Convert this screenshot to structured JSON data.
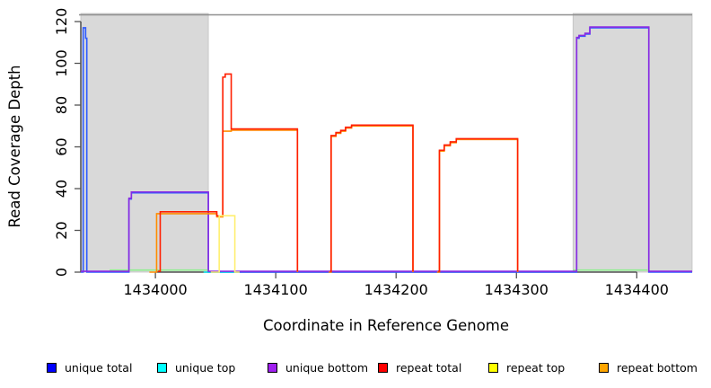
{
  "chart_data": {
    "type": "line",
    "title": "",
    "xlabel": "Coordinate in Reference Genome",
    "ylabel": "Read Coverage Depth",
    "xlim": [
      1433938,
      1434446
    ],
    "ylim": [
      0,
      120
    ],
    "x_ticks": [
      1434000,
      1434100,
      1434200,
      1434300,
      1434400
    ],
    "y_ticks": [
      0,
      20,
      40,
      60,
      80,
      100,
      120
    ],
    "grid": false,
    "legend_position": "bottom",
    "plot_top_border_color": "#8f8f8f",
    "axis_color": "#333333",
    "tick_color": "#555555",
    "background_regions": [
      {
        "name": "gray-repeat-region-left",
        "x0": 1433938,
        "x1": 1434044,
        "color": "#d9d9d9"
      },
      {
        "name": "gray-repeat-region-right",
        "x0": 1434347,
        "x1": 1434446,
        "color": "#d9d9d9"
      }
    ],
    "series": [
      {
        "name": "unique-total",
        "color": "#2e5bff",
        "dy": 0,
        "points": [
          [
            1433938,
            0
          ],
          [
            1433940,
            117
          ],
          [
            1433942,
            112
          ],
          [
            1433943,
            0
          ],
          [
            1433978,
            35
          ],
          [
            1433980,
            38
          ],
          [
            1434044,
            0
          ],
          [
            1434350,
            112
          ],
          [
            1434352,
            113
          ],
          [
            1434357,
            114
          ],
          [
            1434361,
            117
          ],
          [
            1434410,
            0
          ],
          [
            1434446,
            0
          ]
        ]
      },
      {
        "name": "green-baseline-left",
        "color": "#90ee90",
        "dy": 0,
        "points": [
          [
            1433962,
            1
          ],
          [
            1434044,
            1
          ]
        ]
      },
      {
        "name": "green-baseline-right",
        "color": "#90ee90",
        "dy": 0,
        "points": [
          [
            1434347,
            1
          ],
          [
            1434409,
            1
          ]
        ]
      },
      {
        "name": "unique-top",
        "color": "#00e5ee",
        "dy": 0,
        "points": [
          [
            1434040,
            0
          ],
          [
            1434070,
            0
          ]
        ]
      },
      {
        "name": "unique-bottom",
        "color": "#8a2be2",
        "dy": -0.9,
        "points": [
          [
            1433938,
            0
          ],
          [
            1433978,
            35
          ],
          [
            1433980,
            38
          ],
          [
            1434044,
            0
          ],
          [
            1434350,
            112
          ],
          [
            1434352,
            113
          ],
          [
            1434357,
            114
          ],
          [
            1434361,
            117
          ],
          [
            1434410,
            0
          ],
          [
            1434446,
            0
          ]
        ]
      },
      {
        "name": "repeat-bottom-block1",
        "color": "#ff8c00",
        "dy": 0,
        "points": [
          [
            1433995,
            0
          ],
          [
            1434001,
            28
          ],
          [
            1434051,
            26.5
          ],
          [
            1434056,
            67.5
          ],
          [
            1434063,
            68
          ],
          [
            1434118,
            0
          ]
        ]
      },
      {
        "name": "repeat-bottom-block2",
        "color": "#ff8c00",
        "dy": 0,
        "points": [
          [
            1434144,
            0
          ],
          [
            1434146,
            65
          ],
          [
            1434150,
            66.5
          ],
          [
            1434154,
            67.5
          ],
          [
            1434158,
            69
          ],
          [
            1434163,
            70
          ],
          [
            1434214,
            0
          ]
        ]
      },
      {
        "name": "repeat-bottom-block3",
        "color": "#ff8c00",
        "dy": 0,
        "points": [
          [
            1434234,
            0
          ],
          [
            1434236,
            58
          ],
          [
            1434240,
            60.5
          ],
          [
            1434245,
            62
          ],
          [
            1434250,
            63.5
          ],
          [
            1434301,
            0
          ]
        ]
      },
      {
        "name": "repeat-total-block1",
        "color": "#ff1e00",
        "dy": -0.9,
        "points": [
          [
            1434002,
            0
          ],
          [
            1434004,
            28.5
          ],
          [
            1434051,
            26.6
          ],
          [
            1434056,
            93
          ],
          [
            1434058,
            94.5
          ],
          [
            1434063,
            68.2
          ],
          [
            1434118,
            0
          ]
        ]
      },
      {
        "name": "repeat-total-block2",
        "color": "#ff1e00",
        "dy": -0.9,
        "points": [
          [
            1434145,
            0
          ],
          [
            1434146,
            65
          ],
          [
            1434150,
            66.5
          ],
          [
            1434154,
            67.5
          ],
          [
            1434158,
            69
          ],
          [
            1434163,
            70
          ],
          [
            1434214,
            0
          ]
        ]
      },
      {
        "name": "repeat-total-block3",
        "color": "#ff1e00",
        "dy": -0.9,
        "points": [
          [
            1434235,
            0
          ],
          [
            1434236,
            58
          ],
          [
            1434240,
            60.5
          ],
          [
            1434245,
            62
          ],
          [
            1434250,
            63.5
          ],
          [
            1434301,
            0
          ]
        ]
      },
      {
        "name": "repeat-top",
        "color": "#ffef70",
        "dy": 0,
        "points": [
          [
            1434046,
            0
          ],
          [
            1434053,
            27
          ],
          [
            1434066,
            0
          ],
          [
            1434070,
            0
          ]
        ]
      }
    ],
    "legend": [
      {
        "label": "unique total",
        "color": "#0000ff"
      },
      {
        "label": "unique top",
        "color": "#00ffff"
      },
      {
        "label": "unique bottom",
        "color": "#a020f0"
      },
      {
        "label": "repeat total",
        "color": "#ff0000"
      },
      {
        "label": "repeat top",
        "color": "#ffff00"
      },
      {
        "label": "repeat bottom",
        "color": "#ffa500"
      }
    ]
  }
}
